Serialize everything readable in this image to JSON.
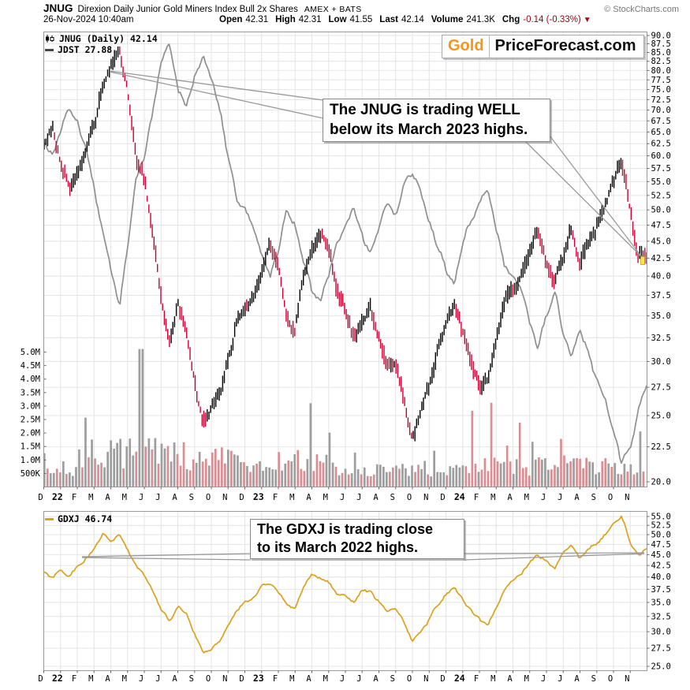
{
  "header": {
    "symbol": "JNUG",
    "name": "Direxion Daily Junior Gold Miners Index Bull 2x Shares",
    "exchange": "AMEX + BATS",
    "copyright": "© StockCharts.com",
    "datetime": "26-Nov-2024 10:40am",
    "quote": {
      "open_label": "Open",
      "open": "42.31",
      "high_label": "High",
      "high": "42.31",
      "low_label": "Low",
      "low": "41.55",
      "last_label": "Last",
      "last": "42.14",
      "volume_label": "Volume",
      "volume": "241.3K",
      "chg_label": "Chg",
      "chg": "-0.14 (-0.33%)",
      "chg_dir": "▼"
    }
  },
  "logo": {
    "part1": "Gold",
    "part2": "PriceForecast.com"
  },
  "legend_main": {
    "line1": "JNUG (Daily) 42.14",
    "line2": "JDST 27.88"
  },
  "legend_lower": {
    "line1": "GDXJ 46.74"
  },
  "annotations": {
    "jnug": [
      "The JNUG is trading WELL",
      "below its March 2023 highs."
    ],
    "gdxj": [
      "The GDXJ is trading close",
      "to its March 2022 highs."
    ]
  },
  "colors": {
    "candle_up": "#000000",
    "candle_down": "#cc0033",
    "jdst_line": "#8f8f8f",
    "gdxj_line": "#d9a21b",
    "vol_red": "#d88f94",
    "vol_gray": "#9e9e9e",
    "grid": "#e4e4e4",
    "border": "#999999",
    "wedge": "#9a9a9a",
    "chg_red": "#990011",
    "logo_orange": "#f7941d"
  },
  "chart_data": [
    {
      "type": "candlestick",
      "title": "JNUG (Daily) 42.14 with JDST 27.88 overlay",
      "yscale": "log",
      "ylim": [
        20,
        90
      ],
      "ytick_step": 2.5,
      "x_labels": [
        "D",
        "22",
        "F",
        "M",
        "A",
        "M",
        "J",
        "J",
        "A",
        "S",
        "O",
        "N",
        "D",
        "23",
        "F",
        "M",
        "A",
        "M",
        "J",
        "J",
        "A",
        "S",
        "O",
        "N",
        "D",
        "24",
        "F",
        "M",
        "A",
        "M",
        "J",
        "J",
        "A",
        "S",
        "O",
        "N"
      ],
      "sampling": "two samples per month, Dec-2021 through Nov-2024, plus final value",
      "series": [
        {
          "name": "JNUG",
          "kind": "candlestick",
          "last": 42.14,
          "values": [
            62,
            66,
            58,
            54,
            57,
            61,
            67,
            76,
            81,
            86,
            74,
            60,
            55,
            46,
            37,
            32,
            36,
            33,
            28,
            24.5,
            25.5,
            27,
            30,
            34,
            36,
            37,
            41,
            44.5,
            41,
            35,
            33,
            40,
            44,
            46.5,
            44,
            38,
            36,
            32.5,
            34,
            36.5,
            32,
            29.5,
            30,
            26,
            23,
            25,
            28,
            31,
            34,
            37,
            33,
            30,
            27.5,
            28.5,
            32,
            36.5,
            38.5,
            40,
            43,
            46.5,
            42,
            39,
            43,
            47,
            41,
            45,
            47,
            51,
            55,
            60,
            50,
            43,
            42.14
          ]
        },
        {
          "name": "JDST",
          "kind": "line",
          "last": 27.88,
          "values": [
            63,
            60,
            66,
            70,
            67,
            61,
            54,
            46,
            41,
            36,
            44,
            55,
            60,
            70,
            82,
            88,
            74,
            70,
            78,
            84,
            78,
            70,
            60,
            52,
            50,
            47,
            43,
            40,
            44,
            50,
            48,
            42,
            38,
            37,
            40,
            45,
            47,
            50,
            46,
            43,
            47,
            51,
            49,
            54,
            57,
            53,
            48,
            44,
            41,
            39,
            44,
            48,
            51,
            54,
            47,
            42,
            40,
            38,
            34,
            31.5,
            35,
            38,
            33,
            30.5,
            33.5,
            31,
            28.5,
            26.5,
            24,
            21.5,
            22.5,
            25.5,
            27.88
          ]
        }
      ],
      "volume": {
        "axis_labels": [
          "5.0M",
          "4.5M",
          "4.0M",
          "3.5M",
          "3.0M",
          "2.5M",
          "2.0M",
          "1.5M",
          "1.0M",
          "500K"
        ],
        "max": 5000000,
        "today": "241.3K"
      }
    },
    {
      "type": "line",
      "title": "GDXJ 46.74",
      "yscale": "log",
      "ylim": [
        25,
        55
      ],
      "ytick_step": 2.5,
      "x_labels": [
        "D",
        "22",
        "F",
        "M",
        "A",
        "M",
        "J",
        "J",
        "A",
        "S",
        "O",
        "N",
        "D",
        "23",
        "F",
        "M",
        "A",
        "M",
        "J",
        "J",
        "A",
        "S",
        "O",
        "N",
        "D",
        "24",
        "F",
        "M",
        "A",
        "M",
        "J",
        "J",
        "A",
        "S",
        "O",
        "N"
      ],
      "sampling": "two samples per month, Dec-2021 through Nov-2024, plus final value",
      "series": [
        {
          "name": "GDXJ",
          "kind": "line",
          "last": 46.74,
          "values": [
            41,
            39.8,
            41.5,
            40,
            42.5,
            44,
            46.5,
            50.3,
            48,
            50,
            46,
            42.5,
            40.5,
            37,
            33.5,
            31.5,
            34.5,
            33,
            29.5,
            26.8,
            27.5,
            28.5,
            31,
            33.5,
            35,
            36,
            38,
            39,
            37,
            34.5,
            34,
            38,
            40.5,
            40,
            39,
            36.5,
            36.5,
            35,
            37.5,
            37,
            35,
            33.5,
            34,
            31.5,
            28.5,
            30,
            32,
            34.5,
            36.5,
            38,
            35.5,
            33.5,
            32,
            31,
            34,
            37.5,
            39.5,
            40.5,
            43,
            45.3,
            43.5,
            41.8,
            45.5,
            47.3,
            44,
            46.5,
            47.5,
            50,
            52.5,
            55,
            48,
            44.6,
            46.74
          ]
        }
      ]
    }
  ]
}
